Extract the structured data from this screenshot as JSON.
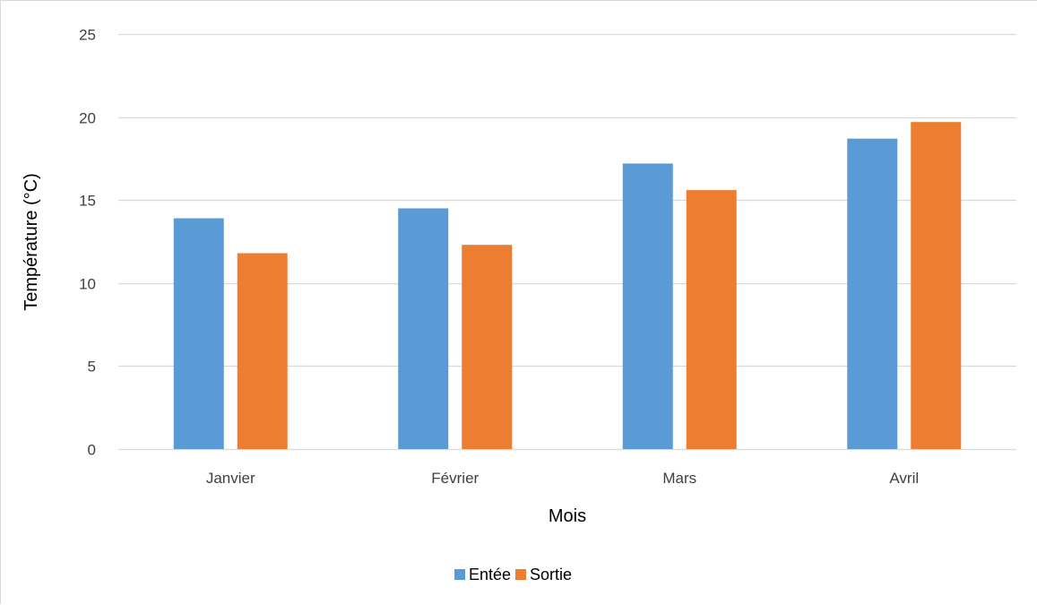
{
  "chart_data": {
    "type": "bar",
    "title": "",
    "xlabel": "Mois",
    "ylabel": "Température (°C)",
    "categories": [
      "Janvier",
      "Février",
      "Mars",
      "Avril"
    ],
    "series": [
      {
        "name": "Entée",
        "color": "#5B9BD5",
        "values": [
          13.9,
          14.5,
          17.2,
          18.7
        ]
      },
      {
        "name": "Sortie",
        "color": "#ED7D31",
        "values": [
          11.8,
          12.3,
          15.6,
          19.7
        ]
      }
    ],
    "ylim": [
      0,
      25
    ],
    "yticks": [
      0,
      5,
      10,
      15,
      20,
      25
    ],
    "grid": true,
    "gridline_color": "#D9D9D9",
    "legend_position": "bottom"
  }
}
